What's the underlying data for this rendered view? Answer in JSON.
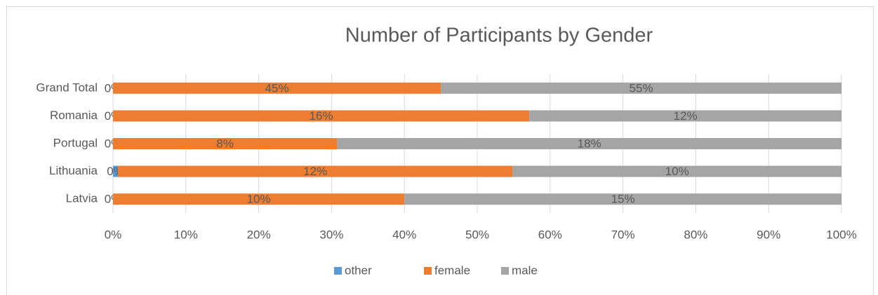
{
  "chart_data": {
    "type": "bar",
    "orientation": "horizontal",
    "stacking": "percent",
    "title": "Number of Participants by Gender",
    "categories": [
      "Grand Total",
      "Romania",
      "Portugal",
      "Lithuania",
      "Latvia"
    ],
    "series": [
      {
        "name": "other",
        "color": "#5b9bd5",
        "values": [
          0,
          0,
          0,
          0.15,
          0
        ],
        "value_labels": [
          "0%",
          "0%",
          "0%",
          "0%",
          "0%"
        ]
      },
      {
        "name": "female",
        "color": "#ed7d31",
        "values": [
          45,
          16,
          8,
          12,
          10
        ],
        "value_labels": [
          "45%",
          "16%",
          "8%",
          "12%",
          "10%"
        ]
      },
      {
        "name": "male",
        "color": "#a5a5a5",
        "values": [
          55,
          12,
          18,
          10,
          15
        ],
        "value_labels": [
          "55%",
          "12%",
          "18%",
          "10%",
          "15%"
        ]
      }
    ],
    "xlim": [
      0,
      100
    ],
    "xticks": [
      {
        "value": 0,
        "label": "0%"
      },
      {
        "value": 10,
        "label": "10%"
      },
      {
        "value": 20,
        "label": "20%"
      },
      {
        "value": 30,
        "label": "30%"
      },
      {
        "value": 40,
        "label": "40%"
      },
      {
        "value": 50,
        "label": "50%"
      },
      {
        "value": 60,
        "label": "60%"
      },
      {
        "value": 70,
        "label": "70%"
      },
      {
        "value": 80,
        "label": "80%"
      },
      {
        "value": 90,
        "label": "90%"
      },
      {
        "value": 100,
        "label": "100%"
      }
    ],
    "grid": true,
    "legend": "bottom"
  }
}
